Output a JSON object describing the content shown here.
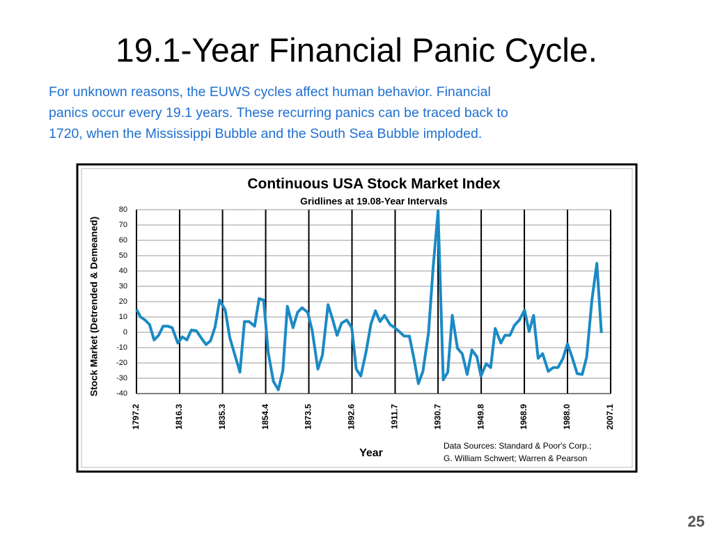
{
  "slide": {
    "title": "19.1-Year Financial Panic Cycle.",
    "text_lines": [
      "For unknown reasons, the EUWS cycles affect human behavior.  Financial",
      "panics occur every 19.1 years.  These recurring panics can be traced back to",
      "1720, when the Mississippi Bubble and the South Sea Bubble imploded."
    ],
    "page_number": "25"
  },
  "chart_data": {
    "type": "line",
    "title": "Continuous USA Stock Market Index",
    "subtitle": "Gridlines at 19.08-Year Intervals",
    "x_label": "Year",
    "y_label": "Stock Market  (Detrended & Demeaned)",
    "notes": [
      "Data Sources:  Standard & Poor's Corp.;",
      "G. William Schwert;  Warren & Pearson"
    ],
    "x": [
      1797.2,
      1799,
      1801,
      1803,
      1805,
      1807,
      1809,
      1811,
      1813,
      1815.5,
      1817.5,
      1819.5,
      1821.5,
      1823.7,
      1826,
      1828,
      1830,
      1832,
      1834,
      1836.5,
      1838.5,
      1841,
      1843,
      1845,
      1847,
      1849.5,
      1851.5,
      1853.5,
      1855.5,
      1857.8,
      1860,
      1862,
      1864,
      1866.5,
      1868.5,
      1870.5,
      1873,
      1875,
      1877.5,
      1879.5,
      1882,
      1884,
      1886,
      1888,
      1890.3,
      1892.5,
      1894.5,
      1896.5,
      1898.8,
      1901,
      1903,
      1905,
      1907,
      1909.5,
      1911.5,
      1913.5,
      1915.7,
      1918,
      1920,
      1922,
      1924,
      1926.5,
      1928.5,
      1930.7,
      1933,
      1935,
      1937,
      1939.3,
      1941.4,
      1943.6,
      1945.7,
      1947.9,
      1949.7,
      1952,
      1954,
      1956,
      1958.5,
      1960.3,
      1962.5,
      1964.5,
      1966.7,
      1969,
      1971,
      1973,
      1975,
      1977,
      1979.5,
      1981.7,
      1983.8,
      1986,
      1988,
      1990.2,
      1992.3,
      1994.5,
      1996.5,
      1998.8,
      2001,
      2003
    ],
    "series": [
      {
        "color": "#1b8ac4",
        "values": [
          15,
          10,
          8,
          5,
          -5,
          -2,
          4,
          4,
          3,
          -7,
          -3,
          -5,
          1.5,
          1,
          -4,
          -8,
          -5.5,
          3.5,
          21,
          14.5,
          -3.5,
          -16,
          -26,
          7,
          7,
          4,
          22,
          21,
          -13,
          -32,
          -37.5,
          -25,
          17,
          3,
          13,
          16,
          13,
          1,
          -24,
          -15,
          18,
          8.6,
          -2,
          6,
          8,
          3,
          -24,
          -28.5,
          -13,
          5.5,
          14,
          7,
          11,
          5,
          3,
          0.5,
          -2.5,
          -2.5,
          -17,
          -33.5,
          -25.5,
          0,
          42,
          79,
          -31,
          -26,
          11,
          -10.5,
          -14,
          -27.5,
          -11.5,
          -16,
          -28.5,
          -20.5,
          -23,
          2.5,
          -7,
          -2,
          -2,
          4.5,
          8,
          14.5,
          0.5,
          11,
          -17,
          -14,
          -25.5,
          -23,
          -23,
          -17,
          -7.5,
          -17,
          -27,
          -27.5,
          -16,
          21,
          45,
          -0.5
        ]
      }
    ],
    "xlim": [
      1797.2,
      2007.1
    ],
    "xticks": [
      1797.2,
      1816.3,
      1835.3,
      1854.4,
      1873.5,
      1892.6,
      1911.7,
      1930.7,
      1949.8,
      1968.9,
      {
        "value": 1988,
        "label": "1988.0"
      },
      2007.1
    ],
    "ylim": [
      -40,
      80
    ],
    "yticks": [
      -40,
      -30,
      -20,
      -10,
      0,
      10,
      20,
      30,
      40,
      50,
      60,
      70,
      80
    ],
    "grid": true
  }
}
